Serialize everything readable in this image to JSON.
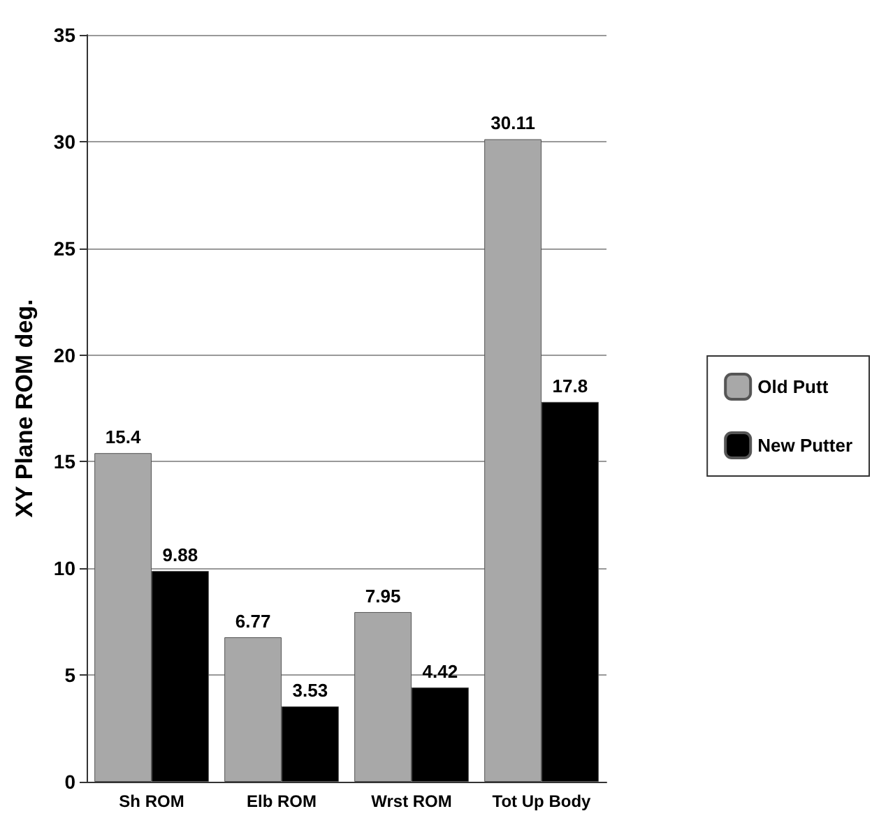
{
  "chart_data": {
    "type": "bar",
    "ylabel": "XY Plane ROM deg.",
    "categories": [
      "Sh ROM",
      "Elb ROM",
      "Wrst ROM",
      "Tot Up Body"
    ],
    "series": [
      {
        "name": "Old Putt",
        "color": "#a8a8a8",
        "values": [
          15.4,
          6.77,
          7.95,
          30.11
        ]
      },
      {
        "name": "New Putter",
        "color": "#000000",
        "values": [
          9.88,
          3.53,
          4.42,
          17.8
        ]
      }
    ],
    "ylim": [
      0,
      35
    ],
    "yticks": [
      0,
      5,
      10,
      15,
      20,
      25,
      30,
      35
    ],
    "grid": "y",
    "legend": "right",
    "data_labels": true
  }
}
